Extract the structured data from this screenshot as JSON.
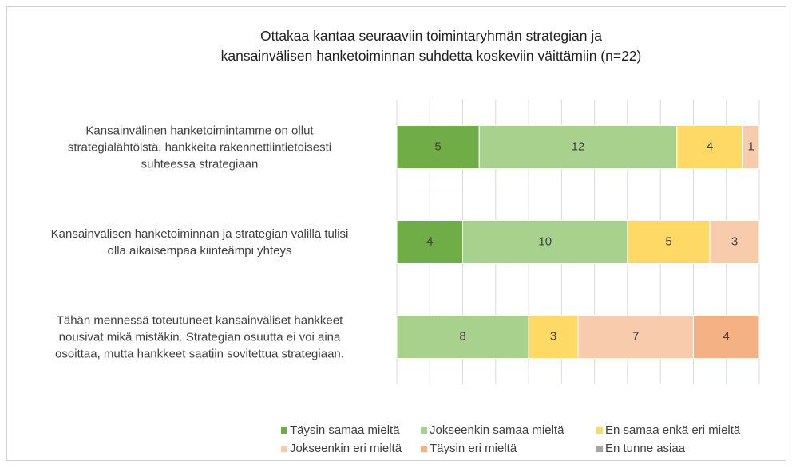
{
  "chart_data": {
    "type": "stacked-barh",
    "title": "Ottakaa kantaa seuraaviin toimintaryhmän  strategian ja\nkansainvälisen hanketoiminnan suhdetta koskeviin väittämiin (n=22)",
    "categories": [
      "Kansainvälinen hanketoimintamme on ollut\nstrategialähtöistä, hankkeita rakennettiintietoisesti\nsuhteessa strategiaan",
      "Kansainvälisen hanketoiminnan ja strategian välillä tulisi\nolla aikaisempaa kiinteämpi yhteys",
      "Tähän mennessä toteutuneet kansainväliset hankkeet\nnousivat mikä mistäkin. Strategian osuutta ei voi aina\nosoittaa, mutta hankkeet saatiin sovitettua strategiaan."
    ],
    "series": [
      {
        "name": "Täysin samaa mieltä",
        "color": "#70ad47",
        "values": [
          5,
          4,
          0
        ]
      },
      {
        "name": "Jokseenkin samaa mieltä",
        "color": "#a9d18e",
        "values": [
          12,
          10,
          8
        ]
      },
      {
        "name": "En samaa enkä eri mieltä",
        "color": "#ffd966",
        "values": [
          4,
          5,
          3
        ]
      },
      {
        "name": "Jokseenkin eri mieltä",
        "color": "#f8cbad",
        "values": [
          1,
          3,
          7
        ]
      },
      {
        "name": "Täysin eri mieltä",
        "color": "#f4b183",
        "values": [
          0,
          0,
          4
        ]
      },
      {
        "name": "En tunne asiaa",
        "color": "#a5a5a5",
        "values": [
          0,
          0,
          0
        ]
      }
    ],
    "xlim": [
      0,
      22
    ],
    "xticks": [
      0,
      2,
      4,
      6,
      8,
      10,
      12,
      14,
      16,
      18,
      20,
      22
    ],
    "grid": true,
    "legend": "bottom"
  }
}
